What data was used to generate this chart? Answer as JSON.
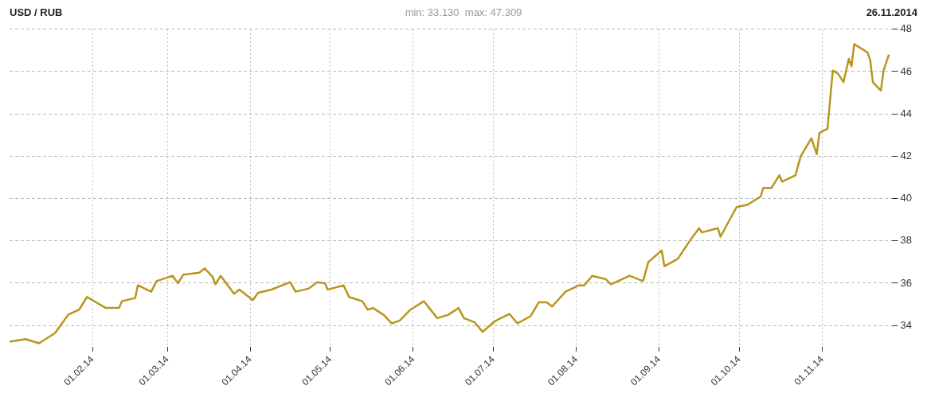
{
  "chart_data": {
    "type": "line",
    "title": "USD / RUB",
    "subtitle": "min: 33.130  max: 47.309",
    "annotations": [
      "26.11.2014"
    ],
    "x": [
      "2014-01-01",
      "2014-01-07",
      "2014-01-12",
      "2014-01-18",
      "2014-01-23",
      "2014-01-27",
      "2014-01-30",
      "2014-02-06",
      "2014-02-11",
      "2014-02-12",
      "2014-02-17",
      "2014-02-18",
      "2014-02-23",
      "2014-02-25",
      "2014-03-03",
      "2014-03-05",
      "2014-03-07",
      "2014-03-13",
      "2014-03-15",
      "2014-03-18",
      "2014-03-19",
      "2014-03-21",
      "2014-03-26",
      "2014-03-28",
      "2014-04-02",
      "2014-04-04",
      "2014-04-09",
      "2014-04-16",
      "2014-04-18",
      "2014-04-23",
      "2014-04-26",
      "2014-04-29",
      "2014-04-30",
      "2014-05-06",
      "2014-05-08",
      "2014-05-13",
      "2014-05-15",
      "2014-05-17",
      "2014-05-21",
      "2014-05-24",
      "2014-05-27",
      "2014-05-31",
      "2014-06-05",
      "2014-06-10",
      "2014-06-14",
      "2014-06-18",
      "2014-06-20",
      "2014-06-24",
      "2014-06-27",
      "2014-07-01",
      "2014-07-03",
      "2014-07-07",
      "2014-07-10",
      "2014-07-15",
      "2014-07-18",
      "2014-07-21",
      "2014-07-23",
      "2014-07-28",
      "2014-08-02",
      "2014-08-04",
      "2014-08-07",
      "2014-08-12",
      "2014-08-14",
      "2014-08-21",
      "2014-08-26",
      "2014-08-28",
      "2014-09-02",
      "2014-09-03",
      "2014-09-08",
      "2014-09-13",
      "2014-09-16",
      "2014-09-17",
      "2014-09-23",
      "2014-09-24",
      "2014-09-30",
      "2014-10-04",
      "2014-10-09",
      "2014-10-10",
      "2014-10-13",
      "2014-10-16",
      "2014-10-17",
      "2014-10-22",
      "2014-10-24",
      "2014-10-28",
      "2014-10-30",
      "2014-10-31",
      "2014-11-03",
      "2014-11-05",
      "2014-11-07",
      "2014-11-09",
      "2014-11-11",
      "2014-11-12",
      "2014-11-13",
      "2014-11-18",
      "2014-11-19",
      "2014-11-20",
      "2014-11-23",
      "2014-11-24",
      "2014-11-26"
    ],
    "series": [
      {
        "color": "#b8961e",
        "values": [
          33.24,
          33.36,
          33.16,
          33.64,
          34.52,
          34.75,
          35.35,
          34.83,
          34.83,
          35.15,
          35.3,
          35.9,
          35.6,
          36.1,
          36.35,
          36.0,
          36.4,
          36.5,
          36.7,
          36.3,
          35.95,
          36.35,
          35.5,
          35.7,
          35.2,
          35.55,
          35.7,
          36.05,
          35.6,
          35.75,
          36.05,
          36.0,
          35.7,
          35.9,
          35.35,
          35.15,
          34.75,
          34.83,
          34.5,
          34.1,
          34.24,
          34.75,
          35.15,
          34.35,
          34.5,
          34.83,
          34.35,
          34.15,
          33.7,
          34.15,
          34.3,
          34.55,
          34.1,
          34.45,
          35.1,
          35.1,
          34.9,
          35.6,
          35.9,
          35.9,
          36.35,
          36.2,
          35.95,
          36.35,
          36.1,
          37.0,
          37.55,
          36.8,
          37.15,
          38.1,
          38.6,
          38.4,
          38.6,
          38.2,
          39.6,
          39.7,
          40.1,
          40.5,
          40.5,
          41.1,
          40.8,
          41.1,
          42.0,
          42.85,
          42.1,
          43.1,
          43.3,
          46.05,
          45.9,
          45.5,
          46.6,
          46.25,
          47.3,
          46.9,
          46.55,
          45.5,
          45.1,
          46.05,
          46.8
        ]
      }
    ],
    "xlim": [
      "2014-01-01",
      "2014-11-27"
    ],
    "xticks": [
      {
        "value": "2014-02-01",
        "label": "01.02.14"
      },
      {
        "value": "2014-03-01",
        "label": "01.03.14"
      },
      {
        "value": "2014-04-01",
        "label": "01.04.14"
      },
      {
        "value": "2014-05-01",
        "label": "01.05.14"
      },
      {
        "value": "2014-06-01",
        "label": "01.06.14"
      },
      {
        "value": "2014-07-01",
        "label": "01.07.14"
      },
      {
        "value": "2014-08-01",
        "label": "01.08.14"
      },
      {
        "value": "2014-09-01",
        "label": "01.09.14"
      },
      {
        "value": "2014-10-01",
        "label": "01.10.14"
      },
      {
        "value": "2014-11-01",
        "label": "01.11.14"
      }
    ],
    "ylim": [
      33,
      48
    ],
    "yticks": [
      34,
      36,
      38,
      40,
      42,
      44,
      46,
      48
    ],
    "grid": true,
    "legend": false,
    "marker": "none",
    "line_style": "solid"
  }
}
